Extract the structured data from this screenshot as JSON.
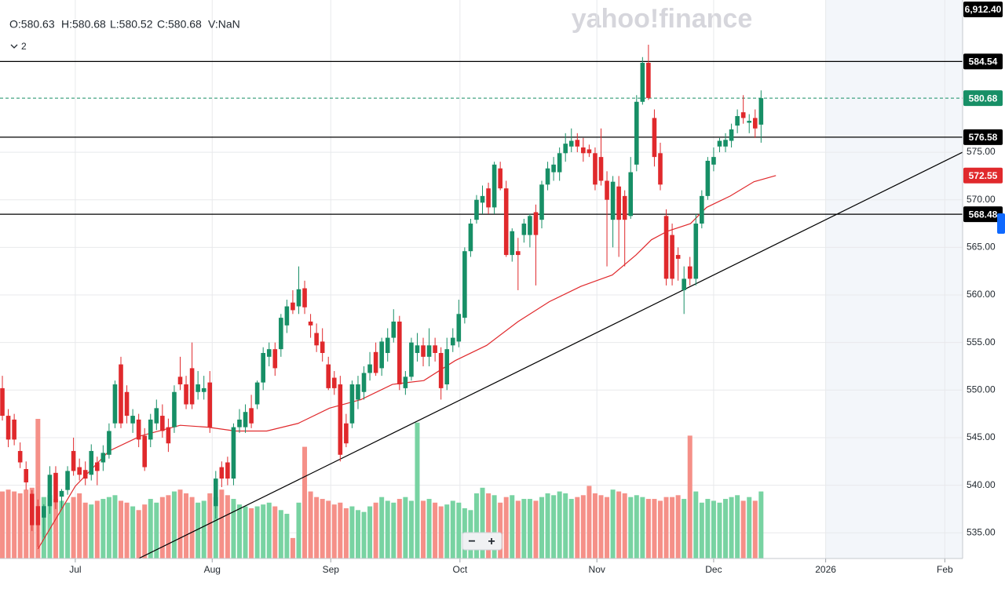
{
  "chart_data": {
    "type": "candlestick",
    "logo": "yahoo!finance",
    "ohlc_header": [
      "O:580.63",
      "H:580.68",
      "L:580.52",
      "C:580.68",
      "V:NaN"
    ],
    "indicator_count": "2",
    "index_tag": "6,912.40",
    "zoom_out": "−",
    "zoom_in": "+",
    "xlim": [
      -0.4,
      162
    ],
    "ylim": [
      532.3,
      591.0
    ],
    "y2lim": [
      0,
      300
    ],
    "xticks": [
      {
        "value": 12.3,
        "label": "Jul"
      },
      {
        "value": 35.4,
        "label": "Aug"
      },
      {
        "value": 55.4,
        "label": "Sep"
      },
      {
        "value": 77.2,
        "label": "Oct"
      },
      {
        "value": 100.3,
        "label": "Nov"
      },
      {
        "value": 120,
        "label": "Dec"
      },
      {
        "value": 138.9,
        "label": "2026"
      },
      {
        "value": 159,
        "label": "Feb"
      }
    ],
    "yticks": [
      {
        "value": 535,
        "label": "535.00"
      },
      {
        "value": 540,
        "label": "540.00"
      },
      {
        "value": 545,
        "label": "545.00"
      },
      {
        "value": 550,
        "label": "550.00"
      },
      {
        "value": 555,
        "label": "555.00"
      },
      {
        "value": 560,
        "label": "560.00"
      },
      {
        "value": 565,
        "label": "565.00"
      },
      {
        "value": 570,
        "label": "570.00"
      },
      {
        "value": 575,
        "label": "575.00"
      }
    ],
    "future_start": 138.9,
    "up_color": "#178f66",
    "down_color": "#e0292c",
    "vol_up_color": "#78d3a2",
    "vol_down_color": "#f59088",
    "candles": [
      [
        550.2,
        551.5,
        546.8,
        547.3
      ],
      [
        547.3,
        548.0,
        544.0,
        544.8
      ],
      [
        546.9,
        547.5,
        544.2,
        544.8
      ],
      [
        543.6,
        544.5,
        541.8,
        542.4
      ],
      [
        541.7,
        542.5,
        539.5,
        540.3
      ],
      [
        539.1,
        539.5,
        535.2,
        535.8
      ],
      [
        537.8,
        538.5,
        533.5,
        535.8
      ],
      [
        536.6,
        538.0,
        534.5,
        537.8
      ],
      [
        537.8,
        542.0,
        537.0,
        541.1
      ],
      [
        541.3,
        542.0,
        537.5,
        538.2
      ],
      [
        538.8,
        539.6,
        537.6,
        539.4
      ],
      [
        539.5,
        542.0,
        539.0,
        541.5
      ],
      [
        543.6,
        545.0,
        541.0,
        541.5
      ],
      [
        541.9,
        542.8,
        540.5,
        541.1
      ],
      [
        541.6,
        542.5,
        540.0,
        540.7
      ],
      [
        541.1,
        544.3,
        540.5,
        543.6
      ],
      [
        542.4,
        543.0,
        540.0,
        541.5
      ],
      [
        542.4,
        544.2,
        541.5,
        543.4
      ],
      [
        543.2,
        546.5,
        542.8,
        545.7
      ],
      [
        546.5,
        551.0,
        546.0,
        550.6
      ],
      [
        552.7,
        553.5,
        546.0,
        546.5
      ],
      [
        549.8,
        550.5,
        546.5,
        547.3
      ],
      [
        546.5,
        548.0,
        545.5,
        547.3
      ],
      [
        546.9,
        547.5,
        544.0,
        544.8
      ],
      [
        545.2,
        546.0,
        541.5,
        541.9
      ],
      [
        544.8,
        547.5,
        544.0,
        546.9
      ],
      [
        546.5,
        549.0,
        545.8,
        548.1
      ],
      [
        547.3,
        548.5,
        545.0,
        545.7
      ],
      [
        546.1,
        547.0,
        543.5,
        544.4
      ],
      [
        546.1,
        550.5,
        545.5,
        549.8
      ],
      [
        551.4,
        553.5,
        550.0,
        550.6
      ],
      [
        550.6,
        551.5,
        548.0,
        548.5
      ],
      [
        552.3,
        555.0,
        548.0,
        548.5
      ],
      [
        549.8,
        552.0,
        549.0,
        550.6
      ],
      [
        549.8,
        551.5,
        549.0,
        550.2
      ],
      [
        550.8,
        552.0,
        545.5,
        546.1
      ],
      [
        537.8,
        541.5,
        536.5,
        540.7
      ],
      [
        541.9,
        542.5,
        539.8,
        540.7
      ],
      [
        542.4,
        543.0,
        540.0,
        540.7
      ],
      [
        540.7,
        546.5,
        540.0,
        546.1
      ],
      [
        546.1,
        548.0,
        545.5,
        546.9
      ],
      [
        546.1,
        548.5,
        545.5,
        547.7
      ],
      [
        548.1,
        549.5,
        546.0,
        546.5
      ],
      [
        548.5,
        551.0,
        548.0,
        550.8
      ],
      [
        550.8,
        554.5,
        550.0,
        553.9
      ],
      [
        553.5,
        555.0,
        552.5,
        554.3
      ],
      [
        554.3,
        555.0,
        551.5,
        552.3
      ],
      [
        554.3,
        558.0,
        553.5,
        557.6
      ],
      [
        556.8,
        559.5,
        556.0,
        558.8
      ],
      [
        559.2,
        560.5,
        558.0,
        558.4
      ],
      [
        558.8,
        563.0,
        558.0,
        560.6
      ],
      [
        560.7,
        561.5,
        558.0,
        558.7
      ],
      [
        557.2,
        558.0,
        555.5,
        556.8
      ],
      [
        556.0,
        557.0,
        554.0,
        554.7
      ],
      [
        555.1,
        556.5,
        553.0,
        553.9
      ],
      [
        552.7,
        553.5,
        550.0,
        550.2
      ],
      [
        551.3,
        552.0,
        549.5,
        550.2
      ],
      [
        550.6,
        551.5,
        542.5,
        543.2
      ],
      [
        546.5,
        547.5,
        544.0,
        544.4
      ],
      [
        546.5,
        551.0,
        546.0,
        550.6
      ],
      [
        549.0,
        551.5,
        548.0,
        550.6
      ],
      [
        549.8,
        552.5,
        549.0,
        551.8
      ],
      [
        551.8,
        554.0,
        551.0,
        552.7
      ],
      [
        554.0,
        555.0,
        551.5,
        551.8
      ],
      [
        552.3,
        555.5,
        551.5,
        555.1
      ],
      [
        553.9,
        556.5,
        553.0,
        555.5
      ],
      [
        555.5,
        558.5,
        555.0,
        557.2
      ],
      [
        557.2,
        557.8,
        550.0,
        550.6
      ],
      [
        550.2,
        552.0,
        549.5,
        551.4
      ],
      [
        551.4,
        555.5,
        551.0,
        555.0
      ],
      [
        553.9,
        556.0,
        553.0,
        554.7
      ],
      [
        554.7,
        555.5,
        552.5,
        553.5
      ],
      [
        553.5,
        556.5,
        552.5,
        554.7
      ],
      [
        554.7,
        555.5,
        553.0,
        553.9
      ],
      [
        553.9,
        554.5,
        549.0,
        550.2
      ],
      [
        550.6,
        555.5,
        550.0,
        554.3
      ],
      [
        554.7,
        556.5,
        554.0,
        555.5
      ],
      [
        555.1,
        559.5,
        554.5,
        558.0
      ],
      [
        557.6,
        565.0,
        557.0,
        564.6
      ],
      [
        564.6,
        568.0,
        564.0,
        567.5
      ],
      [
        567.9,
        570.5,
        567.5,
        570.0
      ],
      [
        569.7,
        571.5,
        568.5,
        570.4
      ],
      [
        571.2,
        571.8,
        568.5,
        569.2
      ],
      [
        569.2,
        574.0,
        568.5,
        573.7
      ],
      [
        573.3,
        574.0,
        571.0,
        571.2
      ],
      [
        571.2,
        572.0,
        564.0,
        564.2
      ],
      [
        564.2,
        567.0,
        563.5,
        566.7
      ],
      [
        564.6,
        566.0,
        560.5,
        564.2
      ],
      [
        566.3,
        568.0,
        565.5,
        567.5
      ],
      [
        566.3,
        568.5,
        565.0,
        568.3
      ],
      [
        568.7,
        569.5,
        561.0,
        566.3
      ],
      [
        567.9,
        572.0,
        567.0,
        571.6
      ],
      [
        571.6,
        574.0,
        571.0,
        573.3
      ],
      [
        572.9,
        574.5,
        572.0,
        573.7
      ],
      [
        572.9,
        575.5,
        572.0,
        574.9
      ],
      [
        574.9,
        577.0,
        574.0,
        575.9
      ],
      [
        575.6,
        577.5,
        575.0,
        576.2
      ],
      [
        576.3,
        577.0,
        575.0,
        575.6
      ],
      [
        575.5,
        576.5,
        574.0,
        574.9
      ],
      [
        575.3,
        575.8,
        574.5,
        574.9
      ],
      [
        574.9,
        575.5,
        571.0,
        571.6
      ],
      [
        574.5,
        577.5,
        571.5,
        572.0
      ],
      [
        572.0,
        573.0,
        563.0,
        570.0
      ],
      [
        567.9,
        572.5,
        565.0,
        571.9
      ],
      [
        571.4,
        572.5,
        564.0,
        567.9
      ],
      [
        570.4,
        571.0,
        563.0,
        567.9
      ],
      [
        568.3,
        574.5,
        568.0,
        572.9
      ],
      [
        573.7,
        581.0,
        573.0,
        580.3
      ],
      [
        580.3,
        585.0,
        580.0,
        584.4
      ],
      [
        584.4,
        586.3,
        580.5,
        580.7
      ],
      [
        578.6,
        579.5,
        573.5,
        574.5
      ],
      [
        574.9,
        576.0,
        571.0,
        571.6
      ],
      [
        568.3,
        569.0,
        561.0,
        561.7
      ],
      [
        566.3,
        567.5,
        561.0,
        561.7
      ],
      [
        564.2,
        565.0,
        561.5,
        563.8
      ],
      [
        560.5,
        563.0,
        558.0,
        561.7
      ],
      [
        563.0,
        564.0,
        561.0,
        561.7
      ],
      [
        561.7,
        568.5,
        561.0,
        567.5
      ],
      [
        567.5,
        571.0,
        567.0,
        570.4
      ],
      [
        570.4,
        574.5,
        570.0,
        574.1
      ],
      [
        573.7,
        575.5,
        573.0,
        574.5
      ],
      [
        575.6,
        576.5,
        575.0,
        576.2
      ],
      [
        575.6,
        577.0,
        575.0,
        576.3
      ],
      [
        576.2,
        578.0,
        575.5,
        577.4
      ],
      [
        577.8,
        579.5,
        577.0,
        578.8
      ],
      [
        579.2,
        581.0,
        578.0,
        578.6
      ],
      [
        578.1,
        579.0,
        577.0,
        578.3
      ],
      [
        578.6,
        579.5,
        576.5,
        577.5
      ],
      [
        577.9,
        581.5,
        576.0,
        580.68
      ]
    ],
    "volume": [
      36,
      37,
      36,
      35,
      37,
      38,
      75,
      33,
      34,
      32,
      31,
      30,
      33,
      35,
      30,
      29,
      31,
      32,
      33,
      34,
      31,
      30,
      28,
      26,
      29,
      32,
      30,
      33,
      34,
      36,
      37,
      35,
      33,
      30,
      31,
      35,
      33,
      37,
      34,
      32,
      29,
      28,
      27,
      28,
      29,
      30,
      28,
      26,
      24,
      11,
      30,
      60,
      36,
      33,
      32,
      31,
      29,
      30,
      27,
      28,
      26,
      25,
      28,
      30,
      33,
      31,
      30,
      32,
      33,
      31,
      73,
      31,
      32,
      30,
      28,
      29,
      31,
      30,
      27,
      26,
      35,
      38,
      35,
      34,
      30,
      33,
      34,
      31,
      32,
      32,
      31,
      33,
      35,
      34,
      36,
      35,
      32,
      33,
      34,
      39,
      35,
      34,
      33,
      37,
      36,
      35,
      33,
      34,
      33,
      32,
      32,
      31,
      33,
      33,
      34,
      32,
      66,
      36,
      30,
      32,
      31,
      30,
      32,
      33,
      34,
      31,
      33,
      31,
      36
    ],
    "ma": {
      "x": [
        6,
        12.3,
        18,
        23.4,
        30,
        34.7,
        39.3,
        44.6,
        49.9,
        55.2,
        60.5,
        65.8,
        71.1,
        76.4,
        81.7,
        87,
        92.3,
        97.6,
        102.9,
        106.9,
        109.5,
        112.2,
        116.1,
        118.8,
        122.8,
        126.8,
        130.5
      ],
      "values": [
        533.3,
        539.9,
        543.6,
        545.2,
        546.3,
        546.1,
        545.7,
        545.7,
        546.5,
        548.1,
        549.0,
        550.6,
        551.0,
        553.1,
        554.7,
        557.2,
        559.3,
        560.9,
        562.1,
        564.2,
        565.8,
        566.7,
        567.5,
        569.2,
        570.4,
        571.9,
        572.55
      ]
    },
    "trendline": {
      "x": [
        23,
        162
      ],
      "values": [
        532.3,
        575.0
      ]
    },
    "levels": [
      584.54,
      576.58,
      568.48
    ]
  }
}
